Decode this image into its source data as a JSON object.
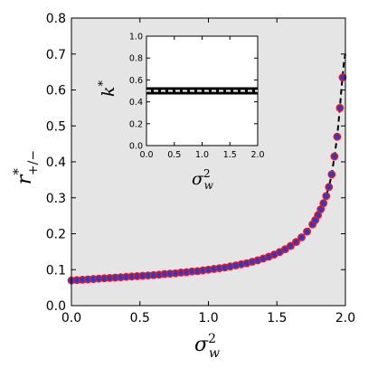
{
  "chart_data": [
    {
      "type": "scatter",
      "role": "main",
      "xlabel_main": "σ",
      "xlabel_sup": "2",
      "xlabel_sub": "w",
      "ylabel_main": "r",
      "ylabel_sup": "*",
      "ylabel_sub": "+/−",
      "xlim": [
        0.0,
        2.0
      ],
      "ylim": [
        0.0,
        0.8
      ],
      "xticks": [
        "0.0",
        "0.5",
        "1.0",
        "1.5",
        "2.0"
      ],
      "yticks": [
        "0.0",
        "0.1",
        "0.2",
        "0.3",
        "0.4",
        "0.5",
        "0.6",
        "0.7",
        "0.8"
      ],
      "background": "#e5e5e5",
      "series": [
        {
          "marker": "circle",
          "fill": "#1f3fd1",
          "edge": "#e8132a",
          "x": [
            0.0,
            0.04,
            0.08,
            0.12,
            0.16,
            0.2,
            0.24,
            0.28,
            0.32,
            0.36,
            0.4,
            0.44,
            0.48,
            0.52,
            0.56,
            0.6,
            0.64,
            0.68,
            0.72,
            0.76,
            0.8,
            0.84,
            0.88,
            0.92,
            0.96,
            1.0,
            1.04,
            1.08,
            1.12,
            1.16,
            1.2,
            1.24,
            1.28,
            1.32,
            1.36,
            1.4,
            1.44,
            1.48,
            1.52,
            1.56,
            1.6,
            1.64,
            1.68,
            1.72,
            1.76,
            1.78,
            1.8,
            1.82,
            1.84,
            1.86,
            1.88,
            1.9,
            1.92,
            1.94,
            1.96,
            1.98
          ],
          "y": [
            0.07,
            0.071,
            0.072,
            0.073,
            0.074,
            0.075,
            0.076,
            0.077,
            0.078,
            0.079,
            0.08,
            0.081,
            0.082,
            0.083,
            0.084,
            0.085,
            0.086,
            0.088,
            0.089,
            0.09,
            0.092,
            0.093,
            0.095,
            0.096,
            0.098,
            0.1,
            0.102,
            0.104,
            0.106,
            0.109,
            0.112,
            0.115,
            0.118,
            0.122,
            0.126,
            0.131,
            0.136,
            0.142,
            0.149,
            0.157,
            0.166,
            0.177,
            0.19,
            0.206,
            0.226,
            0.238,
            0.252,
            0.268,
            0.285,
            0.305,
            0.33,
            0.365,
            0.415,
            0.47,
            0.55,
            0.635
          ]
        },
        {
          "line": "dashed",
          "color": "#000000",
          "x": [
            0.0,
            0.2,
            0.4,
            0.6,
            0.8,
            1.0,
            1.2,
            1.4,
            1.5,
            1.6,
            1.7,
            1.76,
            1.8,
            1.84,
            1.88,
            1.9,
            1.92,
            1.94,
            1.96,
            1.97,
            1.98,
            1.99,
            2.0
          ],
          "y": [
            0.07,
            0.075,
            0.08,
            0.085,
            0.092,
            0.1,
            0.112,
            0.131,
            0.145,
            0.166,
            0.198,
            0.226,
            0.252,
            0.285,
            0.33,
            0.365,
            0.415,
            0.47,
            0.55,
            0.6,
            0.64,
            0.68,
            0.7
          ]
        }
      ]
    },
    {
      "type": "line",
      "role": "inset",
      "xlabel_main": "σ",
      "xlabel_sup": "2",
      "xlabel_sub": "w",
      "ylabel_main": "k",
      "ylabel_sup": "*",
      "xlim": [
        0.0,
        2.0
      ],
      "ylim": [
        0.0,
        1.0
      ],
      "xticks": [
        "0.0",
        "0.5",
        "1.0",
        "1.5",
        "2.0"
      ],
      "yticks": [
        "0.0",
        "0.2",
        "0.4",
        "0.6",
        "0.8",
        "1.0"
      ],
      "background": "#ffffff",
      "series": [
        {
          "line": "solid-thick",
          "color": "#000000",
          "x": [
            0.0,
            2.0
          ],
          "y": [
            0.5,
            0.5
          ]
        },
        {
          "line": "dashed",
          "color": "#ffffff",
          "x": [
            0.0,
            2.0
          ],
          "y": [
            0.5,
            0.5
          ]
        }
      ]
    }
  ]
}
